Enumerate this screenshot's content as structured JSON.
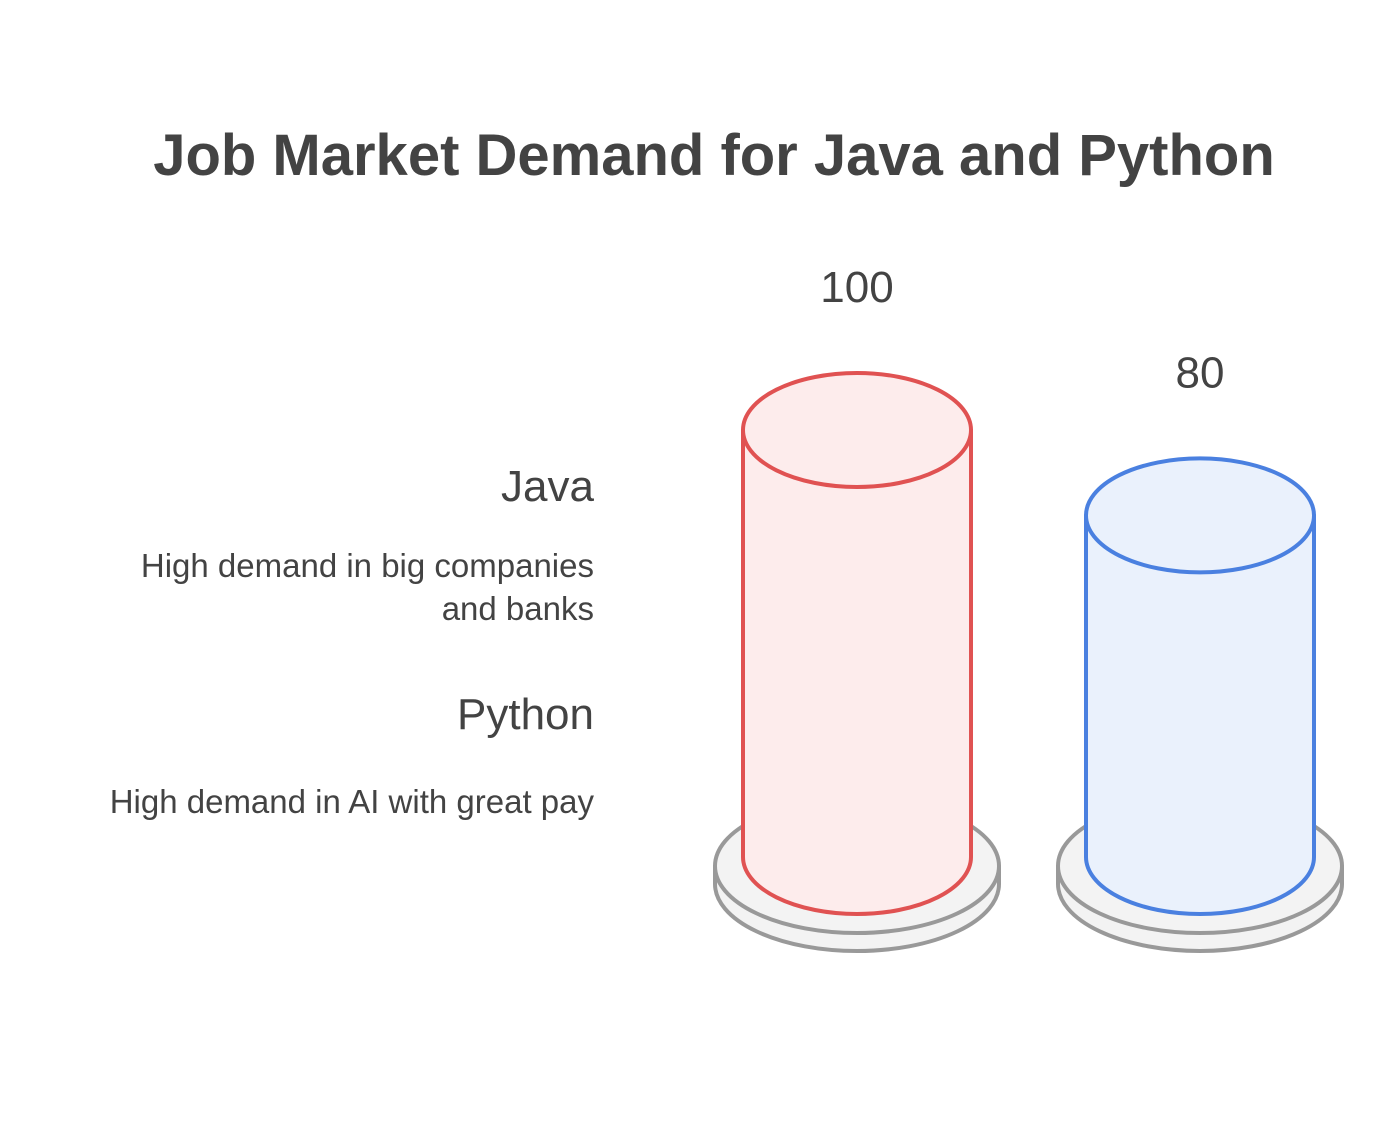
{
  "chart_data": {
    "type": "bar",
    "title": "Job Market Demand for Java and Python",
    "categories": [
      "Java",
      "Python"
    ],
    "values": [
      100,
      80
    ],
    "value_labels": [
      "100",
      "80"
    ],
    "descriptions": [
      "High demand in big companies and banks",
      "High demand in AI with great pay"
    ],
    "colors": {
      "stroke": [
        "#e05252",
        "#4a80e0"
      ],
      "fill": [
        "#fdecec",
        "#eaf1fc"
      ],
      "base_stroke": "#999999",
      "base_fill": "#f3f3f3"
    },
    "ylim": [
      0,
      100
    ],
    "grid": false,
    "legend": "left"
  }
}
